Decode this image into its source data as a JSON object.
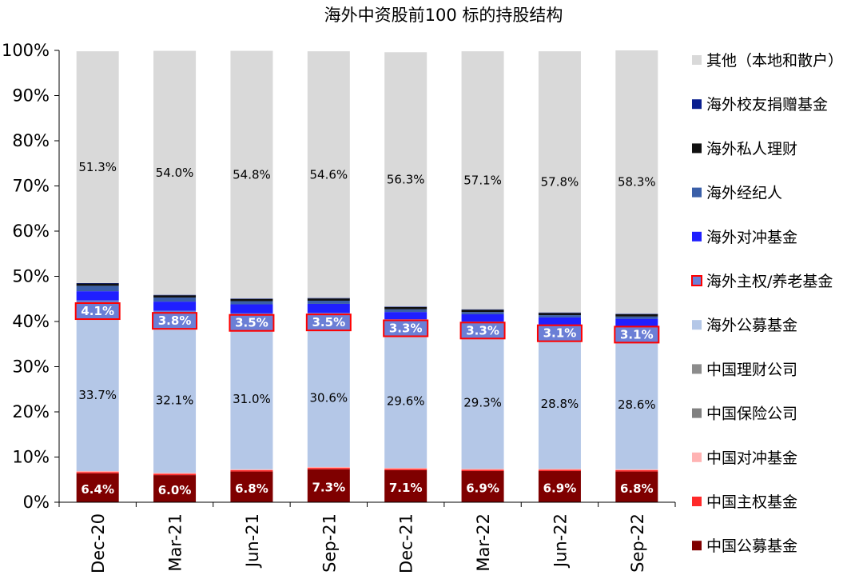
{
  "chart_data": {
    "type": "bar",
    "stacked": true,
    "title": "海外中资股前100 标的持股结构",
    "categories": [
      "Dec-20",
      "Mar-21",
      "Jun-21",
      "Sep-21",
      "Dec-21",
      "Mar-22",
      "Jun-22",
      "Sep-22"
    ],
    "ylim": [
      0,
      100
    ],
    "y_ticks": [
      "0%",
      "10%",
      "20%",
      "30%",
      "40%",
      "50%",
      "60%",
      "70%",
      "80%",
      "90%",
      "100%"
    ],
    "grid": false,
    "legend_position": "right",
    "series": [
      {
        "name": "中国公募基金",
        "color": "#7F0000",
        "values": [
          6.4,
          6.0,
          6.8,
          7.3,
          7.1,
          6.9,
          6.9,
          6.8
        ],
        "labels": [
          "6.4%",
          "6.0%",
          "6.8%",
          "7.3%",
          "7.1%",
          "6.9%",
          "6.9%",
          "6.8%"
        ]
      },
      {
        "name": "中国主权基金",
        "color": "#FF2A2A",
        "values": [
          0.3,
          0.3,
          0.3,
          0.3,
          0.3,
          0.3,
          0.3,
          0.3
        ]
      },
      {
        "name": "中国对冲基金",
        "color": "#FFB3B3",
        "values": [
          0.2,
          0.2,
          0.2,
          0.2,
          0.2,
          0.2,
          0.2,
          0.2
        ]
      },
      {
        "name": "中国保险公司",
        "color": "#808080",
        "values": [
          0.0,
          0.0,
          0.0,
          0.0,
          0.0,
          0.0,
          0.0,
          0.0
        ]
      },
      {
        "name": "中国理财公司",
        "color": "#8C8C8C",
        "values": [
          0.0,
          0.0,
          0.0,
          0.0,
          0.0,
          0.0,
          0.0,
          0.0
        ]
      },
      {
        "name": "海外公募基金",
        "color": "#B4C7E7",
        "values": [
          33.7,
          32.1,
          31.0,
          30.6,
          29.6,
          29.3,
          28.8,
          28.6
        ],
        "labels": [
          "33.7%",
          "32.1%",
          "31.0%",
          "30.6%",
          "29.6%",
          "29.3%",
          "28.8%",
          "28.6%"
        ]
      },
      {
        "name": "海外主权/养老基金",
        "color": "#6B7FD6",
        "highlight": "#FF0000",
        "values": [
          4.1,
          3.8,
          3.5,
          3.5,
          3.3,
          3.3,
          3.1,
          3.1
        ],
        "labels": [
          "4.1%",
          "3.8%",
          "3.5%",
          "3.5%",
          "3.3%",
          "3.3%",
          "3.1%",
          "3.1%"
        ]
      },
      {
        "name": "海外对冲基金",
        "color": "#1F1FFF",
        "values": [
          2.0,
          2.0,
          2.0,
          2.0,
          1.6,
          1.6,
          1.6,
          1.6
        ]
      },
      {
        "name": "海外经纪人",
        "color": "#3A5FA8",
        "values": [
          1.2,
          0.9,
          0.7,
          0.7,
          0.6,
          0.5,
          0.5,
          0.5
        ]
      },
      {
        "name": "海外私人理财",
        "color": "#111111",
        "values": [
          0.5,
          0.5,
          0.5,
          0.5,
          0.5,
          0.5,
          0.5,
          0.5
        ]
      },
      {
        "name": "海外校友捐赠基金",
        "color": "#0A1F8F",
        "values": [
          0.1,
          0.1,
          0.1,
          0.1,
          0.1,
          0.1,
          0.1,
          0.1
        ]
      },
      {
        "name": "其他（本地和散户）",
        "color": "#D9D9D9",
        "values": [
          51.3,
          54.0,
          54.8,
          54.6,
          56.3,
          57.1,
          57.8,
          58.3
        ],
        "labels": [
          "51.3%",
          "54.0%",
          "54.8%",
          "54.6%",
          "56.3%",
          "57.1%",
          "57.8%",
          "58.3%"
        ]
      }
    ]
  }
}
